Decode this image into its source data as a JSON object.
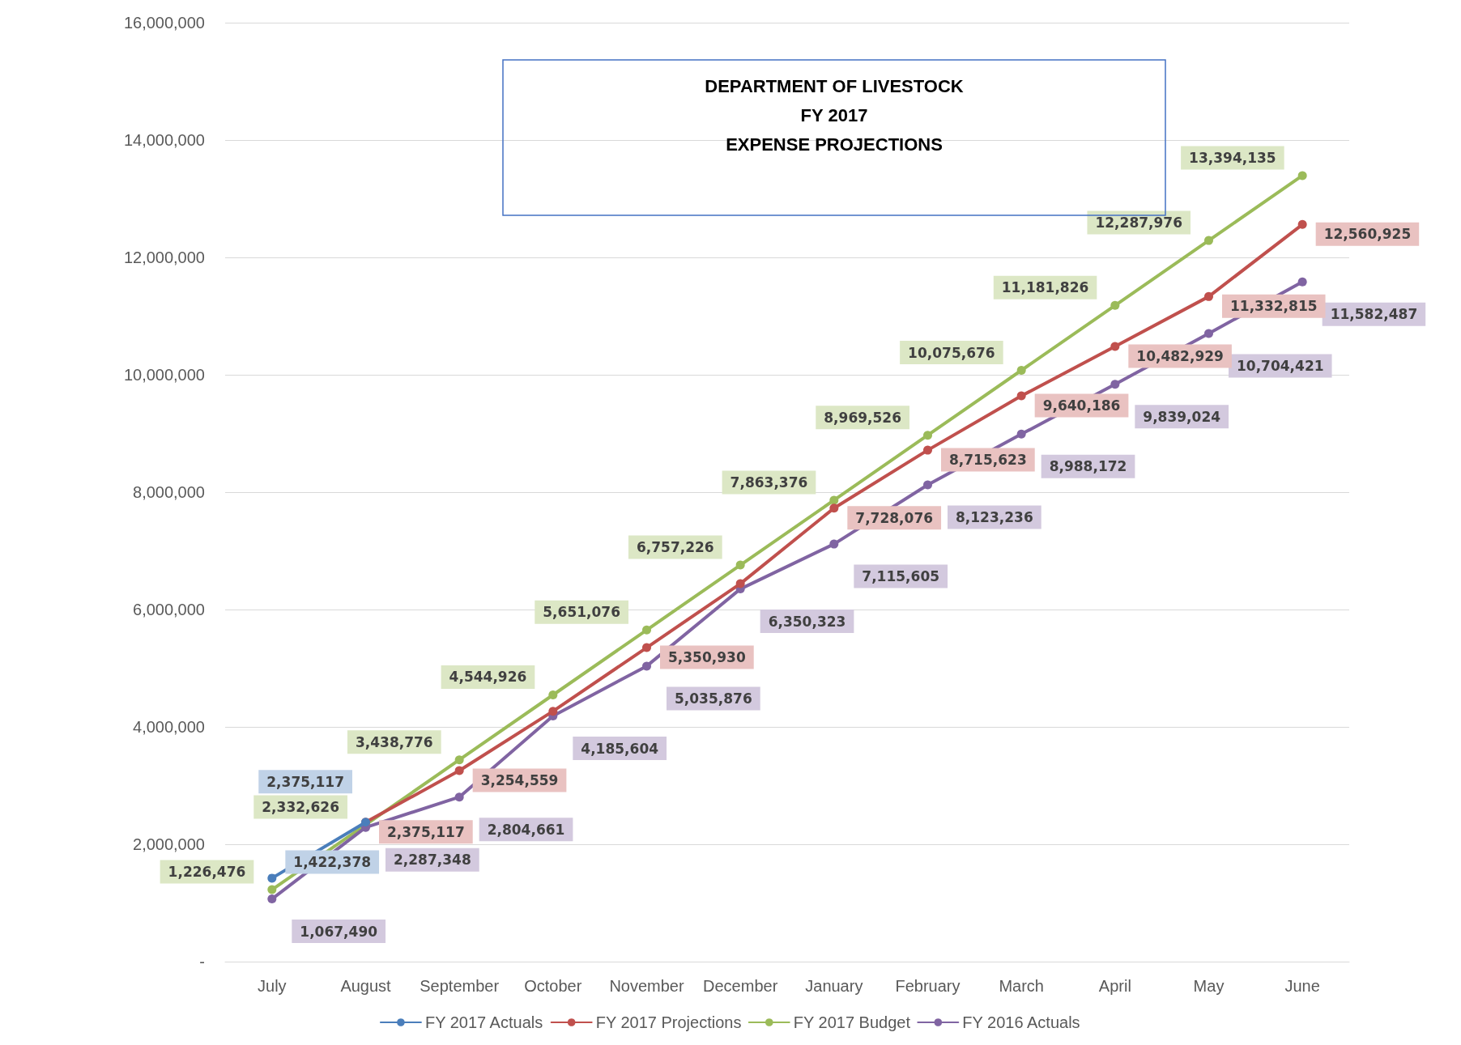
{
  "chart_data": {
    "type": "line",
    "title": "DEPARTMENT OF LIVESTOCK\nFY 2017\nEXPENSE PROJECTIONS",
    "categories": [
      "July",
      "August",
      "September",
      "October",
      "November",
      "December",
      "January",
      "February",
      "March",
      "April",
      "May",
      "June"
    ],
    "series": [
      {
        "name": "FY 2017 Actuals",
        "color": "#4a7ebb",
        "values": [
          1422378,
          2375117,
          null,
          null,
          null,
          null,
          null,
          null,
          null,
          null,
          null,
          null
        ],
        "value_labels": [
          "1,422,378",
          "2,375,117",
          null,
          null,
          null,
          null,
          null,
          null,
          null,
          null,
          null,
          null
        ]
      },
      {
        "name": "FY 2017 Projections",
        "color": "#c0504d",
        "values": [
          null,
          2375117,
          3254559,
          4266600,
          5350930,
          6440000,
          7728076,
          8715623,
          9640186,
          10482929,
          11332815,
          12560925
        ],
        "value_labels": [
          null,
          "2,375,117",
          "3,254,559",
          null,
          "5,350,930",
          null,
          "7,728,076",
          "8,715,623",
          "9,640,186",
          "10,482,929",
          "11,332,815",
          "12,560,925"
        ]
      },
      {
        "name": "FY 2017 Budget",
        "color": "#9bbb59",
        "values": [
          1226476,
          2332626,
          3438776,
          4544926,
          5651076,
          6757226,
          7863376,
          8969526,
          10075676,
          11181826,
          12287976,
          13394135
        ],
        "value_labels": [
          "1,226,476",
          "2,332,626",
          "3,438,776",
          "4,544,926",
          "5,651,076",
          "6,757,226",
          "7,863,376",
          "8,969,526",
          "10,075,676",
          "11,181,826",
          "12,287,976",
          "13,394,135"
        ]
      },
      {
        "name": "FY 2016 Actuals",
        "color": "#8064a2",
        "values": [
          1067490,
          2287348,
          2804661,
          4185604,
          5035876,
          6350323,
          7115605,
          8123236,
          8988172,
          9839024,
          10704421,
          11582487
        ],
        "value_labels": [
          "1,067,490",
          "2,287,348",
          "2,804,661",
          "4,185,604",
          "5,035,876",
          "6,350,323",
          "7,115,605",
          "8,123,236",
          "8,988,172",
          "9,839,024",
          "10,704,421",
          "11,582,487"
        ]
      }
    ],
    "ylim": [
      0,
      16000000
    ],
    "yticks": [
      {
        "value": 0,
        "label": "-"
      },
      {
        "value": 2000000,
        "label": "2,000,000"
      },
      {
        "value": 4000000,
        "label": "4,000,000"
      },
      {
        "value": 6000000,
        "label": "6,000,000"
      },
      {
        "value": 8000000,
        "label": "8,000,000"
      },
      {
        "value": 10000000,
        "label": "10,000,000"
      },
      {
        "value": 12000000,
        "label": "12,000,000"
      },
      {
        "value": 14000000,
        "label": "14,000,000"
      },
      {
        "value": 16000000,
        "label": "16,000,000"
      }
    ],
    "grid": "y",
    "legend": "bottom",
    "marker": "circle"
  }
}
